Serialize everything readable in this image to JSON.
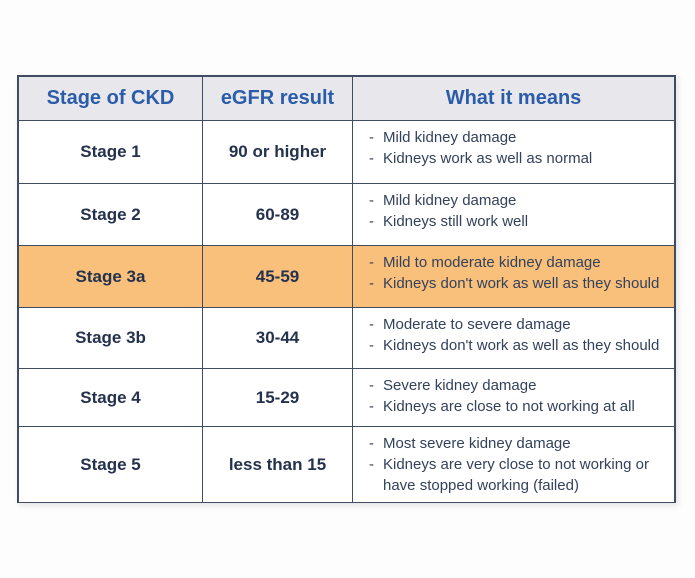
{
  "table": {
    "bullet": "-",
    "headers": [
      {
        "label": "Stage of CKD"
      },
      {
        "label": "eGFR result"
      },
      {
        "label": "What it means"
      }
    ],
    "rows": [
      {
        "stage": "Stage 1",
        "egfr": "90 or higher",
        "highlighted": false,
        "means": [
          "Mild kidney damage",
          "Kidneys work as well as normal"
        ]
      },
      {
        "stage": "Stage 2",
        "egfr": "60-89",
        "highlighted": false,
        "means": [
          "Mild kidney damage",
          "Kidneys still work well"
        ]
      },
      {
        "stage": "Stage 3a",
        "egfr": "45-59",
        "highlighted": true,
        "means": [
          "Mild to moderate kidney damage",
          "Kidneys don't work as well as they should"
        ]
      },
      {
        "stage": "Stage 3b",
        "egfr": "30-44",
        "highlighted": false,
        "means": [
          "Moderate to severe damage",
          "Kidneys don't work as well as they should"
        ]
      },
      {
        "stage": "Stage 4",
        "egfr": "15-29",
        "highlighted": false,
        "means": [
          "Severe kidney damage",
          "Kidneys are close to not working at all"
        ]
      },
      {
        "stage": "Stage 5",
        "egfr": "less than 15",
        "highlighted": false,
        "means": [
          "Most severe kidney damage",
          "Kidneys are very close to not working or have stopped working (failed)"
        ]
      }
    ],
    "colors": {
      "highlight": "#f9c07c",
      "header_bg": "#e8e8ec",
      "header_text": "#2b5ca9",
      "border": "#3f4c61",
      "stage_text": "#25324e",
      "means_text": "#33415a",
      "cell_bg": "#ffffff",
      "page_bg": "#fdfdfd"
    }
  }
}
